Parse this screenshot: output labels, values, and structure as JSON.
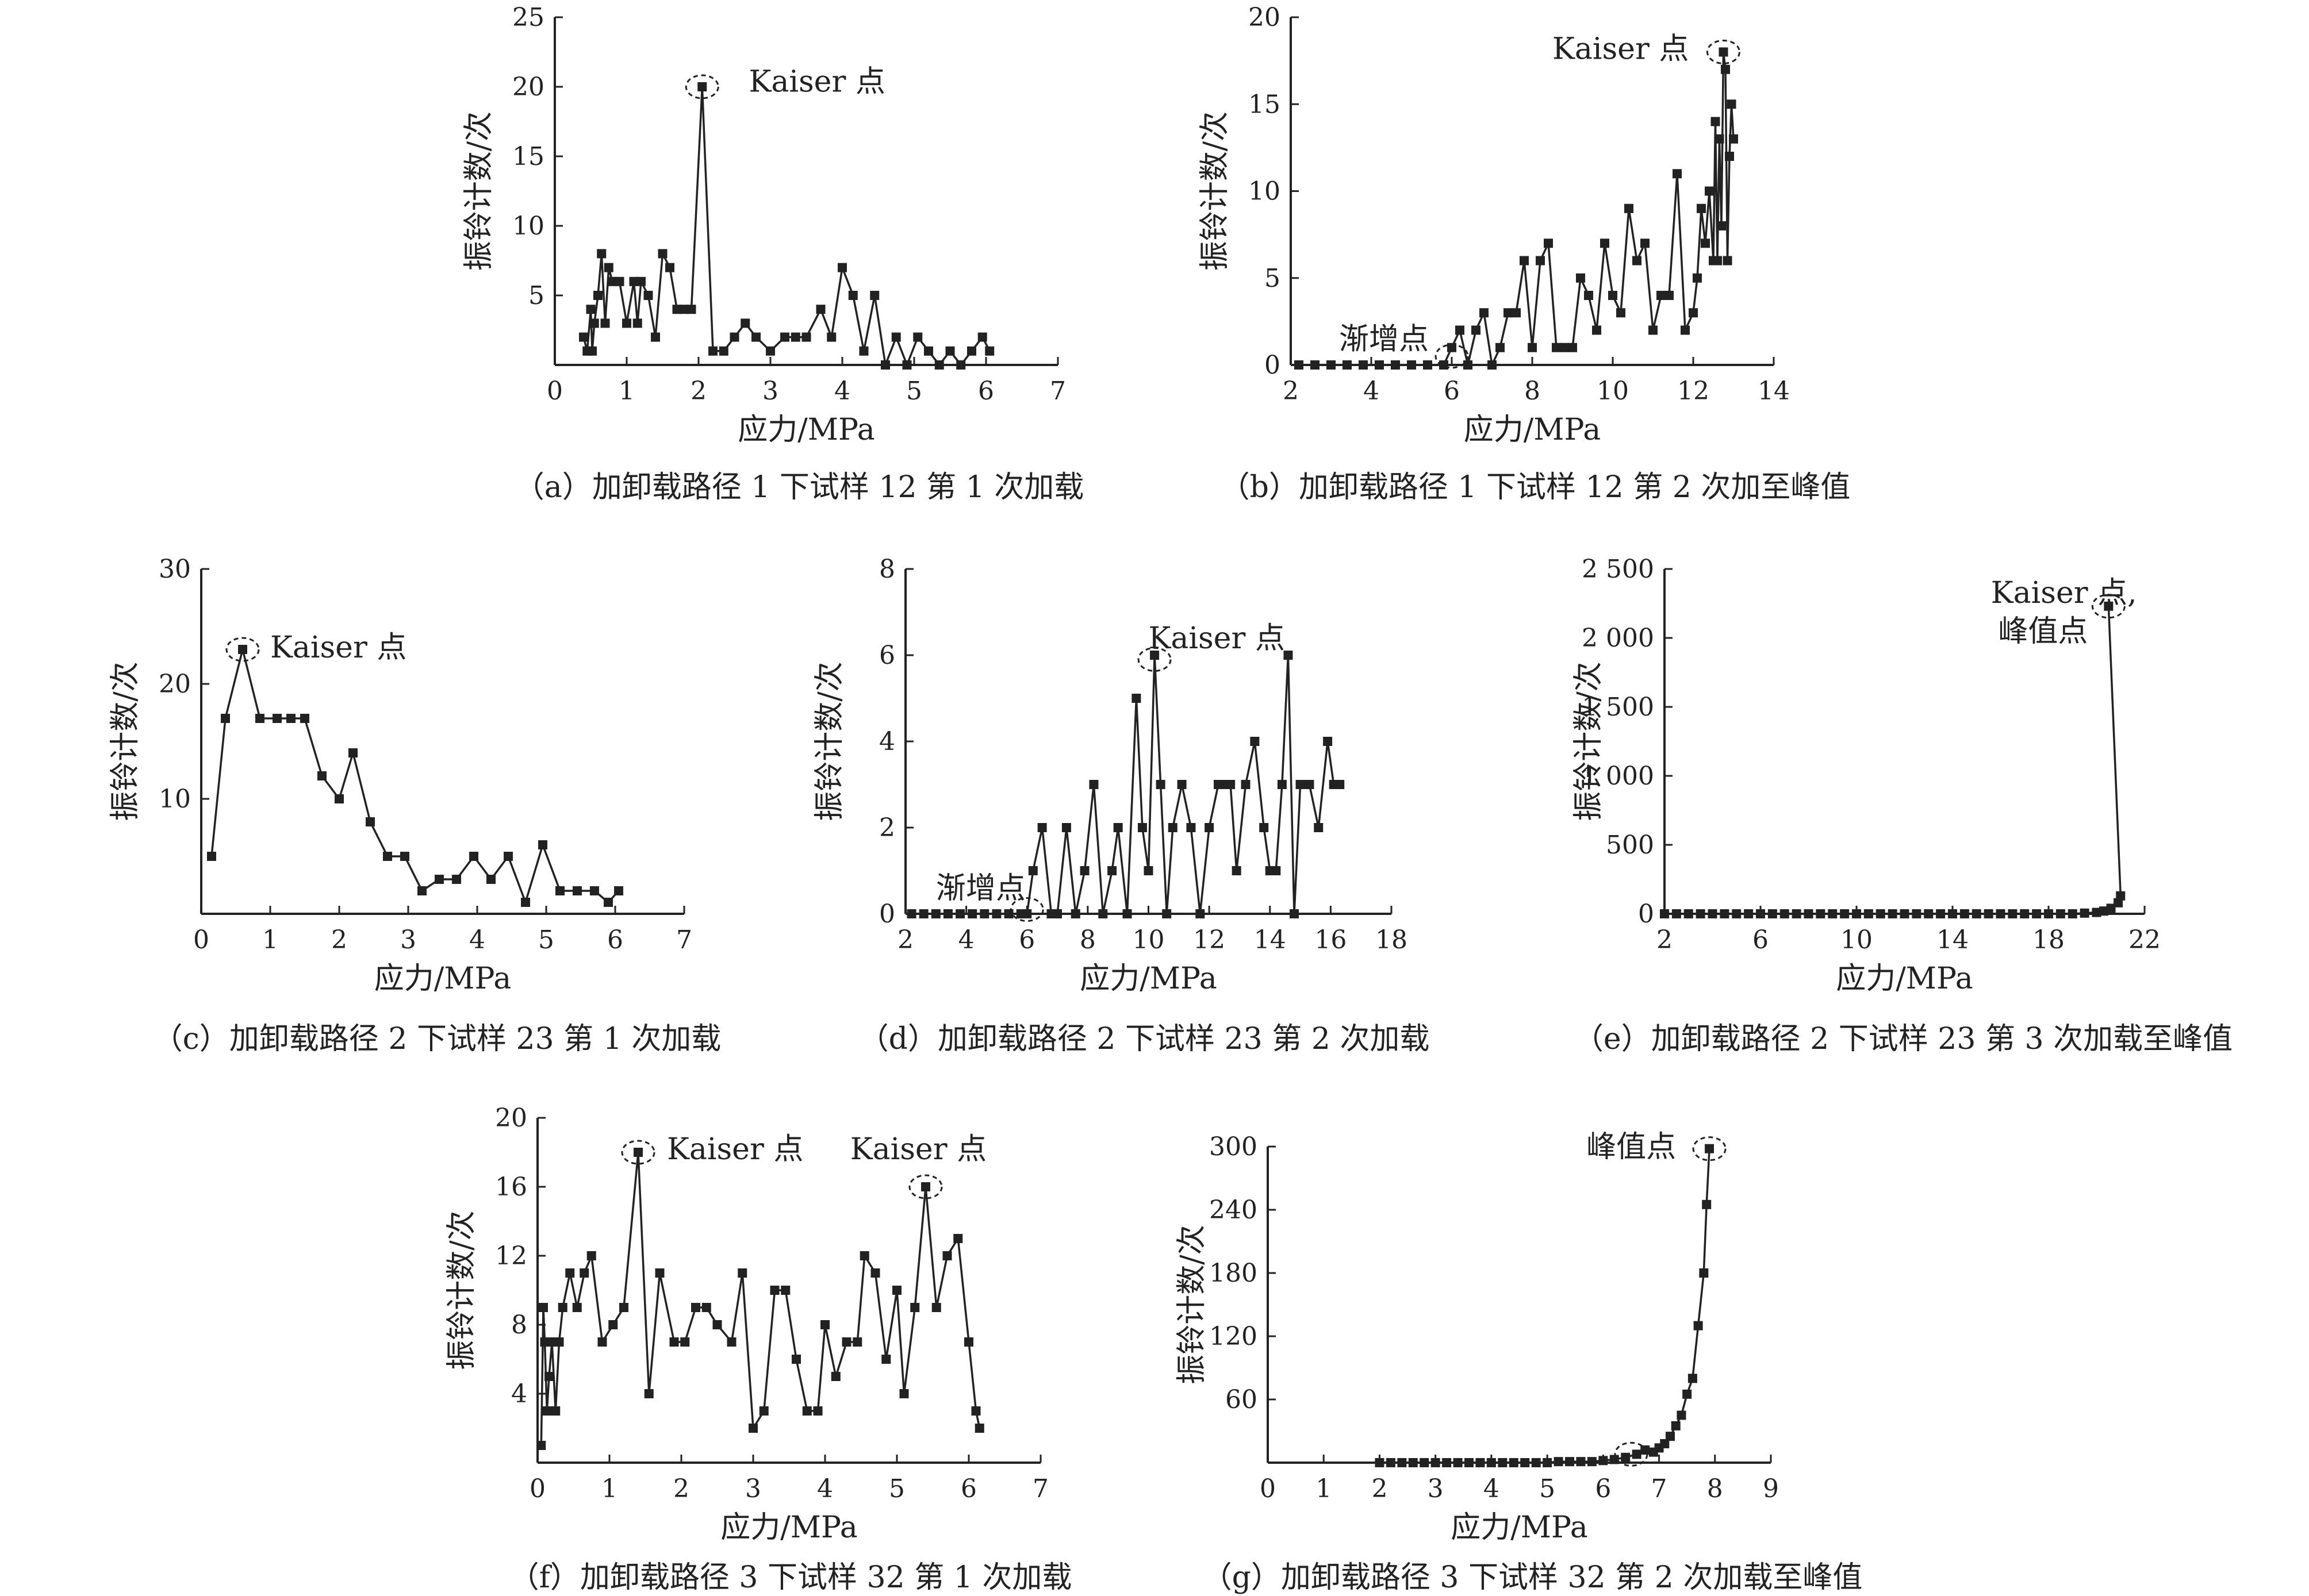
{
  "chart_data": [
    {
      "id": "a",
      "type": "line",
      "caption": "（a）加卸载路径 1 下试样 12 第 1 次加载",
      "xlabel": "应力/MPa",
      "ylabel": "振铃计数/次",
      "xlim": [
        0,
        7
      ],
      "ylim": [
        0,
        25
      ],
      "xticks": [
        0,
        1,
        2,
        3,
        4,
        5,
        6,
        7
      ],
      "xtick_labels": [
        "0",
        "1",
        "2",
        "3",
        "4",
        "5",
        "6",
        "7"
      ],
      "yticks": [
        5,
        10,
        15,
        20,
        25
      ],
      "ytick_labels": [
        "5",
        "10",
        "15",
        "20",
        "25"
      ],
      "x": [
        0.4,
        0.45,
        0.5,
        0.52,
        0.55,
        0.6,
        0.65,
        0.7,
        0.75,
        0.8,
        0.9,
        1.0,
        1.1,
        1.15,
        1.2,
        1.3,
        1.4,
        1.5,
        1.6,
        1.7,
        1.8,
        1.9,
        2.05,
        2.2,
        2.35,
        2.5,
        2.65,
        2.8,
        3.0,
        3.2,
        3.35,
        3.5,
        3.7,
        3.85,
        4.0,
        4.15,
        4.3,
        4.45,
        4.6,
        4.75,
        4.9,
        5.05,
        5.2,
        5.35,
        5.5,
        5.65,
        5.8,
        5.95,
        6.05
      ],
      "values": [
        2,
        1,
        4,
        1,
        3,
        5,
        8,
        3,
        7,
        6,
        6,
        3,
        6,
        3,
        6,
        5,
        2,
        8,
        7,
        4,
        4,
        4,
        20,
        1,
        1,
        2,
        3,
        2,
        1,
        2,
        2,
        2,
        4,
        2,
        7,
        5,
        1,
        5,
        0,
        2,
        0,
        2,
        1,
        0,
        1,
        0,
        1,
        2,
        1
      ],
      "annotations": [
        {
          "text": "Kaiser 点",
          "x": 2.05,
          "y": 20,
          "lx": 2.7,
          "ly": 20.4,
          "ellipse": true
        }
      ]
    },
    {
      "id": "b",
      "type": "line",
      "caption": "（b）加卸载路径 1 下试样 12 第 2 次加至峰值",
      "xlabel": "应力/MPa",
      "ylabel": "振铃计数/次",
      "xlim": [
        2,
        14
      ],
      "ylim": [
        0,
        20
      ],
      "xticks": [
        2,
        4,
        6,
        8,
        10,
        12,
        14
      ],
      "xtick_labels": [
        "2",
        "4",
        "6",
        "8",
        "10",
        "12",
        "14"
      ],
      "yticks": [
        0,
        5,
        10,
        15,
        20
      ],
      "ytick_labels": [
        "0",
        "5",
        "10",
        "15",
        "20"
      ],
      "x": [
        2.2,
        2.6,
        3.0,
        3.4,
        3.8,
        4.2,
        4.6,
        5.0,
        5.4,
        5.8,
        6.0,
        6.2,
        6.4,
        6.6,
        6.8,
        7.0,
        7.2,
        7.4,
        7.6,
        7.8,
        8.0,
        8.2,
        8.4,
        8.6,
        8.8,
        9.0,
        9.2,
        9.4,
        9.6,
        9.8,
        10.0,
        10.2,
        10.4,
        10.6,
        10.8,
        11.0,
        11.2,
        11.4,
        11.6,
        11.8,
        12.0,
        12.1,
        12.2,
        12.3,
        12.4,
        12.5,
        12.55,
        12.6,
        12.65,
        12.7,
        12.75,
        12.8,
        12.85,
        12.9,
        12.95,
        13.0
      ],
      "values": [
        0,
        0,
        0,
        0,
        0,
        0,
        0,
        0,
        0,
        0,
        1,
        2,
        0,
        2,
        3,
        0,
        1,
        3,
        3,
        6,
        1,
        6,
        7,
        1,
        1,
        1,
        5,
        4,
        2,
        7,
        4,
        3,
        9,
        6,
        7,
        2,
        4,
        4,
        11,
        2,
        3,
        5,
        9,
        7,
        10,
        6,
        14,
        6,
        13,
        8,
        18,
        17,
        6,
        12,
        15,
        13
      ],
      "annotations": [
        {
          "text": "Kaiser 点",
          "x": 12.75,
          "y": 18,
          "lx": 8.5,
          "ly": 18.2,
          "ellipse": true
        },
        {
          "text": "渐增点",
          "x": 6.0,
          "y": 0.5,
          "lx": 3.2,
          "ly": 1.5,
          "ellipse": true
        }
      ]
    },
    {
      "id": "c",
      "type": "line",
      "caption": "（c）加卸载路径 2 下试样 23 第 1 次加载",
      "xlabel": "应力/MPa",
      "ylabel": "振铃计数/次",
      "xlim": [
        0,
        7
      ],
      "ylim": [
        0,
        30
      ],
      "xticks": [
        0,
        1,
        2,
        3,
        4,
        5,
        6,
        7
      ],
      "xtick_labels": [
        "0",
        "1",
        "2",
        "3",
        "4",
        "5",
        "6",
        "7"
      ],
      "yticks": [
        10,
        20,
        30
      ],
      "ytick_labels": [
        "10",
        "20",
        "30"
      ],
      "x": [
        0.15,
        0.35,
        0.6,
        0.85,
        1.1,
        1.3,
        1.5,
        1.75,
        2.0,
        2.2,
        2.45,
        2.7,
        2.95,
        3.2,
        3.45,
        3.7,
        3.95,
        4.2,
        4.45,
        4.7,
        4.95,
        5.2,
        5.45,
        5.7,
        5.9,
        6.05
      ],
      "values": [
        5,
        17,
        23,
        17,
        17,
        17,
        17,
        12,
        10,
        14,
        8,
        5,
        5,
        2,
        3,
        3,
        5,
        3,
        5,
        1,
        6,
        2,
        2,
        2,
        1,
        2
      ],
      "annotations": [
        {
          "text": "Kaiser 点",
          "x": 0.6,
          "y": 23,
          "lx": 1.0,
          "ly": 23.2,
          "ellipse": true
        }
      ]
    },
    {
      "id": "d",
      "type": "line",
      "caption": "（d）加卸载路径 2 下试样 23 第 2 次加载",
      "xlabel": "应力/MPa",
      "ylabel": "振铃计数/次",
      "xlim": [
        2,
        18
      ],
      "ylim": [
        0,
        8
      ],
      "xticks": [
        2,
        4,
        6,
        8,
        10,
        12,
        14,
        16,
        18
      ],
      "xtick_labels": [
        "2",
        "4",
        "6",
        "8",
        "10",
        "12",
        "14",
        "16",
        "18"
      ],
      "yticks": [
        0,
        2,
        4,
        6,
        8
      ],
      "ytick_labels": [
        "0",
        "2",
        "4",
        "6",
        "8"
      ],
      "x": [
        2.2,
        2.6,
        3.0,
        3.4,
        3.8,
        4.2,
        4.6,
        5.0,
        5.4,
        5.8,
        6.0,
        6.2,
        6.5,
        6.8,
        7.0,
        7.3,
        7.6,
        7.9,
        8.2,
        8.5,
        8.8,
        9.0,
        9.3,
        9.6,
        9.8,
        10.0,
        10.2,
        10.4,
        10.6,
        10.8,
        11.1,
        11.4,
        11.7,
        12.0,
        12.3,
        12.5,
        12.7,
        12.9,
        13.2,
        13.5,
        13.8,
        14.0,
        14.2,
        14.4,
        14.6,
        14.8,
        15.0,
        15.3,
        15.6,
        15.9,
        16.1,
        16.3
      ],
      "values": [
        0,
        0,
        0,
        0,
        0,
        0,
        0,
        0,
        0,
        0,
        0,
        1,
        2,
        0,
        0,
        2,
        0,
        1,
        3,
        0,
        1,
        2,
        0,
        5,
        2,
        1,
        6,
        3,
        0,
        2,
        3,
        2,
        0,
        2,
        3,
        3,
        3,
        1,
        3,
        4,
        2,
        1,
        1,
        3,
        6,
        0,
        3,
        3,
        2,
        4,
        3,
        3
      ],
      "annotations": [
        {
          "text": "Kaiser 点",
          "x": 10.2,
          "y": 5.9,
          "lx": 10.0,
          "ly": 6.4,
          "ellipse": true
        },
        {
          "text": "渐增点",
          "x": 6.0,
          "y": 0.1,
          "lx": 3.0,
          "ly": 0.6,
          "ellipse": true
        }
      ]
    },
    {
      "id": "e",
      "type": "line",
      "caption": "（e）加卸载路径 2 下试样 23 第 3 次加载至峰值",
      "xlabel": "应力/MPa",
      "ylabel": "振铃计数/次",
      "xlim": [
        2,
        22
      ],
      "ylim": [
        0,
        2500
      ],
      "xticks": [
        2,
        6,
        10,
        14,
        18,
        22
      ],
      "xtick_labels": [
        "2",
        "6",
        "10",
        "14",
        "18",
        "22"
      ],
      "yticks": [
        0,
        500,
        1000,
        1500,
        2000,
        2500
      ],
      "ytick_labels": [
        "0",
        "500",
        "1 000",
        "1 500",
        "2 000",
        "2 500"
      ],
      "x": [
        2.0,
        2.5,
        3.0,
        3.5,
        4.0,
        4.5,
        5.0,
        5.5,
        6.0,
        6.5,
        7.0,
        7.5,
        8.0,
        8.5,
        9.0,
        9.5,
        10.0,
        10.5,
        11.0,
        11.5,
        12.0,
        12.5,
        13.0,
        13.5,
        14.0,
        14.5,
        15.0,
        15.5,
        16.0,
        16.5,
        17.0,
        17.5,
        18.0,
        18.5,
        19.0,
        19.5,
        20.0,
        20.3,
        20.6,
        20.9,
        21.0,
        20.5
      ],
      "values": [
        0,
        0,
        0,
        0,
        0,
        0,
        0,
        0,
        0,
        0,
        0,
        0,
        0,
        0,
        0,
        0,
        0,
        0,
        0,
        0,
        0,
        0,
        0,
        0,
        0,
        0,
        0,
        0,
        0,
        0,
        0,
        0,
        0,
        0,
        0,
        5,
        10,
        20,
        40,
        80,
        130,
        2230
      ],
      "annotations": [
        {
          "text": "Kaiser 点,",
          "x": 20.5,
          "y": 2230,
          "lx": 15.6,
          "ly": 2330,
          "ellipse": true
        },
        {
          "text": "峰值点",
          "x": 20.5,
          "y": 2230,
          "lx": 15.9,
          "ly": 2050,
          "ellipse": false
        }
      ]
    },
    {
      "id": "f",
      "type": "line",
      "caption": "（f）加卸载路径 3 下试样 32 第 1 次加载",
      "xlabel": "应力/MPa",
      "ylabel": "振铃计数/次",
      "xlim": [
        0,
        7
      ],
      "ylim": [
        0,
        20
      ],
      "xticks": [
        0,
        1,
        2,
        3,
        4,
        5,
        6,
        7
      ],
      "xtick_labels": [
        "0",
        "1",
        "2",
        "3",
        "4",
        "5",
        "6",
        "7"
      ],
      "yticks": [
        4,
        8,
        12,
        16,
        20
      ],
      "ytick_labels": [
        "4",
        "8",
        "12",
        "16",
        "20"
      ],
      "x": [
        0.05,
        0.08,
        0.1,
        0.13,
        0.16,
        0.2,
        0.25,
        0.3,
        0.35,
        0.45,
        0.55,
        0.65,
        0.75,
        0.9,
        1.05,
        1.2,
        1.4,
        1.55,
        1.7,
        1.9,
        2.05,
        2.2,
        2.35,
        2.5,
        2.7,
        2.85,
        3.0,
        3.15,
        3.3,
        3.45,
        3.6,
        3.75,
        3.9,
        4.0,
        4.15,
        4.3,
        4.45,
        4.55,
        4.7,
        4.85,
        5.0,
        5.1,
        5.25,
        5.4,
        5.55,
        5.7,
        5.85,
        6.0,
        6.1,
        6.15
      ],
      "values": [
        1,
        9,
        7,
        3,
        5,
        7,
        3,
        7,
        9,
        11,
        9,
        11,
        12,
        7,
        8,
        9,
        18,
        4,
        11,
        7,
        7,
        9,
        9,
        8,
        7,
        11,
        2,
        3,
        10,
        10,
        6,
        3,
        3,
        8,
        5,
        7,
        7,
        12,
        11,
        6,
        10,
        4,
        9,
        16,
        9,
        12,
        13,
        7,
        3,
        2
      ],
      "annotations": [
        {
          "text": "Kaiser 点",
          "x": 1.4,
          "y": 18,
          "lx": 1.8,
          "ly": 18.2,
          "ellipse": true
        },
        {
          "text": "Kaiser 点",
          "x": 5.4,
          "y": 16,
          "lx": 4.35,
          "ly": 18.2,
          "ellipse": true
        }
      ]
    },
    {
      "id": "g",
      "type": "line",
      "caption": "（g）加卸载路径 3 下试样 32 第 2 次加载至峰值",
      "xlabel": "应力/MPa",
      "ylabel": "振铃计数/次",
      "xlim": [
        0,
        9
      ],
      "ylim": [
        0,
        300
      ],
      "xticks": [
        0,
        1,
        2,
        3,
        4,
        5,
        6,
        7,
        8,
        9
      ],
      "xtick_labels": [
        "0",
        "1",
        "2",
        "3",
        "4",
        "5",
        "6",
        "7",
        "8",
        "9"
      ],
      "yticks": [
        60,
        120,
        180,
        240,
        300
      ],
      "ytick_labels": [
        "60",
        "120",
        "180",
        "240",
        "300"
      ],
      "x": [
        2.0,
        2.2,
        2.4,
        2.6,
        2.8,
        3.0,
        3.2,
        3.4,
        3.6,
        3.8,
        4.0,
        4.2,
        4.4,
        4.6,
        4.8,
        5.0,
        5.2,
        5.4,
        5.6,
        5.8,
        6.0,
        6.2,
        6.4,
        6.6,
        6.75,
        6.9,
        7.0,
        7.1,
        7.2,
        7.3,
        7.4,
        7.5,
        7.6,
        7.7,
        7.8,
        7.85,
        7.9
      ],
      "values": [
        0,
        0,
        0,
        0,
        0,
        0,
        0,
        0,
        0,
        0,
        0,
        0,
        0,
        0,
        0,
        0,
        1,
        1,
        1,
        1,
        2,
        3,
        5,
        8,
        12,
        10,
        14,
        18,
        25,
        35,
        45,
        65,
        80,
        130,
        180,
        245,
        298
      ],
      "annotations": [
        {
          "text": "峰值点",
          "x": 7.9,
          "y": 298,
          "lx": 5.7,
          "ly": 300,
          "ellipse": true
        },
        {
          "text": "",
          "x": 6.5,
          "y": 8,
          "ellipse": true
        }
      ]
    }
  ]
}
